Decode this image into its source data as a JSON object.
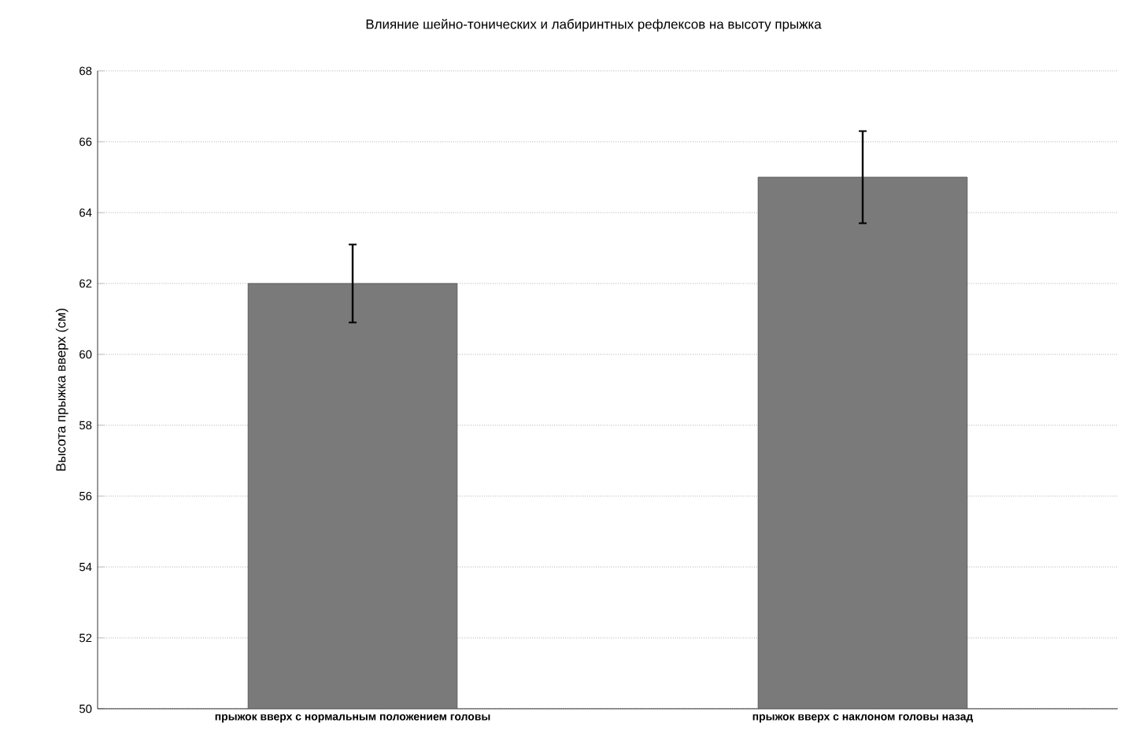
{
  "chart_data": {
    "type": "bar",
    "title": "Влияние шейно-тонических и лабиринтных рефлексов на высоту прыжка",
    "ylabel": "Высота прыжка вверх (см)",
    "categories": [
      "прыжок вверх с нормальным положением головы",
      "прыжок вверх с наклоном головы назад"
    ],
    "values": [
      62,
      65
    ],
    "errors": [
      1.1,
      1.3
    ],
    "color": "#7a7a7a",
    "ylim": [
      50,
      68
    ],
    "yticks": [
      50,
      52,
      54,
      56,
      58,
      60,
      62,
      64,
      66,
      68
    ],
    "grid": "y"
  }
}
